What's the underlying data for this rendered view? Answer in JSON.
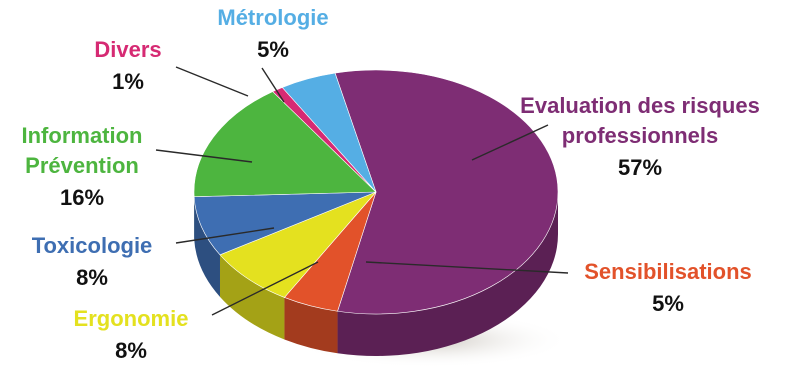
{
  "chart_data": {
    "type": "pie",
    "categories": [
      "Evaluation des risques professionnels",
      "Sensibilisations",
      "Ergonomie",
      "Toxicologie",
      "Information Prévention",
      "Divers",
      "Métrologie"
    ],
    "values": [
      57,
      5,
      8,
      8,
      16,
      1,
      5
    ],
    "value_labels": [
      "57%",
      "5%",
      "8%",
      "8%",
      "16%",
      "1%",
      "5%"
    ],
    "label_lines": [
      [
        "Evaluation des risques",
        "professionnels"
      ],
      [
        "Sensibilisations"
      ],
      [
        "Ergonomie"
      ],
      [
        "Toxicologie"
      ],
      [
        "Information",
        "Prévention"
      ],
      [
        "Divers"
      ],
      [
        "Métrologie"
      ]
    ],
    "colors": [
      "#7e2d74",
      "#e2522a",
      "#e4e11f",
      "#3e6eb2",
      "#4db53f",
      "#d62a73",
      "#55aee4"
    ],
    "label_colors": [
      "#7e2d74",
      "#e2522a",
      "#e4e11f",
      "#3e6eb2",
      "#4db53f",
      "#d62a73",
      "#55aee4"
    ],
    "value_color": "#111111",
    "style": "3d-tilted"
  }
}
